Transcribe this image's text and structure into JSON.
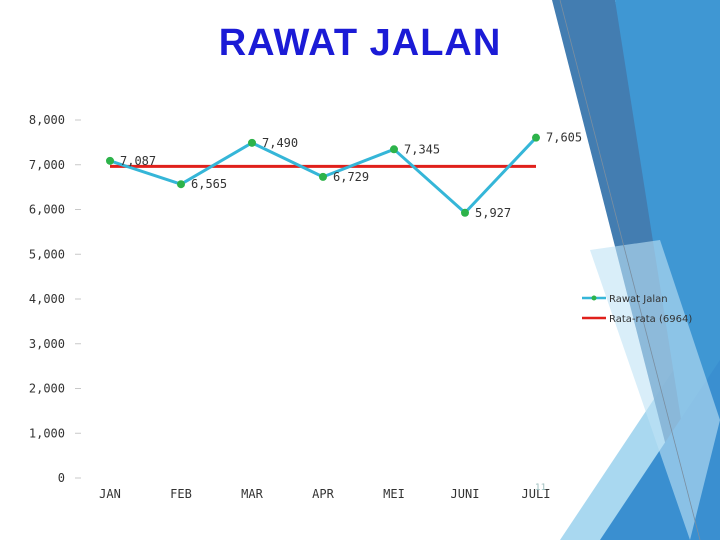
{
  "slide": {
    "title": "RAWAT JALAN",
    "slide_number": "11"
  },
  "colors": {
    "title": "#1b1bd6",
    "series_line": "#35b6d8",
    "series_marker": "#2db34a",
    "average_line": "#e0201b",
    "deco_dark": "#2f6fa8",
    "deco_mid": "#3f97d3",
    "deco_light": "#a9d8f0"
  },
  "chart_data": {
    "type": "line",
    "categories": [
      "JAN",
      "FEB",
      "MAR",
      "APR",
      "MEI",
      "JUNI",
      "JULI"
    ],
    "series": [
      {
        "name": "Rawat Jalan",
        "values": [
          7087,
          6565,
          7490,
          6729,
          7345,
          5927,
          7605
        ],
        "data_labels": [
          "7,087",
          "6,565",
          "7,490",
          "6,729",
          "7,345",
          "5,927",
          "7,605"
        ]
      },
      {
        "name": "Rata-rata (6964)",
        "values": [
          6964,
          6964,
          6964,
          6964,
          6964,
          6964,
          6964
        ]
      }
    ],
    "ylim": [
      0,
      8000
    ],
    "yticks": [
      0,
      1000,
      2000,
      3000,
      4000,
      5000,
      6000,
      7000,
      8000
    ],
    "ytick_labels": [
      "0",
      "1,000",
      "2,000",
      "3,000",
      "4,000",
      "5,000",
      "6,000",
      "7,000",
      "8,000"
    ],
    "grid": false,
    "legend_position": "right"
  }
}
